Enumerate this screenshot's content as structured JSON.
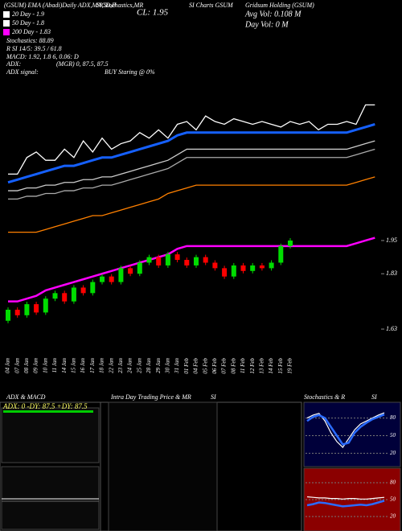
{
  "header": {
    "left": "(GSUM) EMA (Abadi)Daily ADX,MACD,B",
    "mid": "SI,Stochastics,MR",
    "close": "CL: 1.95",
    "name": "SI Charts GSUM",
    "company": "Gridsum Holding (GSUM)",
    "avg_vol": "Avg Vol: 0.108 M",
    "day_vol": "Day Vol: 0 M",
    "legend": [
      {
        "label": "20 Day - 1.9",
        "color": "#ffffff"
      },
      {
        "label": "50 Day - 1.8",
        "color": "#ffffff"
      },
      {
        "label": "200 Day - 1.83",
        "color": "#ff00ff"
      }
    ],
    "stats": [
      "Stochastics: 88.89",
      "R SI 14/5: 39.5 / 61.8",
      "MACD: 1.92, 1.8     6, 0.06: D"
    ],
    "adx": "ADX:",
    "adx_values": "(MGR) 0, 87.5, 87.5",
    "adx_signal": "ADX signal:",
    "signal": "BUY Staring @ 0%"
  },
  "chart_data": [
    {
      "type": "candlestick",
      "categories": [
        "04 Jan",
        "07 Jan",
        "08 Jan",
        "09 Jan",
        "10 Jan",
        "11 Jan",
        "14 Jan",
        "15 Jan",
        "16 Jan",
        "17 Jan",
        "18 Jan",
        "22 Jan",
        "23 Jan",
        "24 Jan",
        "25 Jan",
        "28 Jan",
        "29 Jan",
        "30 Jan",
        "31 Jan",
        "01 Feb",
        "04 Feb",
        "05 Feb",
        "06 Feb",
        "07 Feb",
        "08 Feb",
        "11 Feb",
        "12 Feb",
        "13 Feb",
        "14 Feb",
        "15 Feb",
        "19 Feb",
        null,
        null,
        null,
        null,
        null,
        null,
        null,
        null,
        null
      ],
      "open": [
        1.66,
        1.7,
        1.68,
        1.72,
        1.69,
        1.74,
        1.76,
        1.73,
        1.78,
        1.76,
        1.8,
        1.82,
        1.8,
        1.85,
        1.83,
        1.87,
        1.89,
        1.86,
        1.9,
        1.88,
        1.86,
        1.89,
        1.87,
        1.85,
        1.82,
        1.86,
        1.84,
        1.86,
        1.85,
        1.87,
        1.93,
        null,
        null,
        null,
        null,
        null,
        null,
        null,
        null,
        null
      ],
      "close": [
        1.7,
        1.68,
        1.72,
        1.69,
        1.74,
        1.76,
        1.73,
        1.78,
        1.76,
        1.8,
        1.82,
        1.8,
        1.85,
        1.83,
        1.87,
        1.89,
        1.86,
        1.9,
        1.88,
        1.86,
        1.89,
        1.87,
        1.85,
        1.82,
        1.86,
        1.84,
        1.86,
        1.85,
        1.87,
        1.93,
        1.95,
        null,
        null,
        null,
        null,
        null,
        null,
        null,
        null,
        null
      ],
      "up_color": "#00dd00",
      "down_color": "#ff0000",
      "series": [
        {
          "color": "#ffffff",
          "values": [
            2.19,
            2.19,
            2.25,
            2.27,
            2.24,
            2.24,
            2.28,
            2.25,
            2.31,
            2.27,
            2.32,
            2.28,
            2.3,
            2.31,
            2.34,
            2.32,
            2.35,
            2.32,
            2.37,
            2.38,
            2.35,
            2.4,
            2.38,
            2.37,
            2.39,
            2.38,
            2.37,
            2.38,
            2.37,
            2.36,
            2.38,
            2.37,
            2.38,
            2.35,
            2.37,
            2.37,
            2.38,
            2.37,
            2.44,
            2.44
          ]
        },
        {
          "color": "#1560ff",
          "values": [
            2.16,
            2.17,
            2.18,
            2.19,
            2.2,
            2.21,
            2.22,
            2.22,
            2.23,
            2.24,
            2.25,
            2.25,
            2.26,
            2.27,
            2.28,
            2.29,
            2.3,
            2.31,
            2.33,
            2.34,
            2.34,
            2.34,
            2.34,
            2.34,
            2.34,
            2.34,
            2.34,
            2.34,
            2.34,
            2.34,
            2.34,
            2.34,
            2.34,
            2.34,
            2.34,
            2.34,
            2.34,
            2.35,
            2.36,
            2.37
          ]
        },
        {
          "color": "#cccccc",
          "values": [
            2.13,
            2.13,
            2.14,
            2.14,
            2.15,
            2.15,
            2.16,
            2.16,
            2.17,
            2.17,
            2.18,
            2.18,
            2.19,
            2.2,
            2.21,
            2.22,
            2.23,
            2.24,
            2.26,
            2.28,
            2.28,
            2.28,
            2.28,
            2.28,
            2.28,
            2.28,
            2.28,
            2.28,
            2.28,
            2.28,
            2.28,
            2.28,
            2.28,
            2.28,
            2.28,
            2.28,
            2.28,
            2.29,
            2.3,
            2.31
          ]
        },
        {
          "color": "#aaaaaa",
          "values": [
            2.1,
            2.1,
            2.11,
            2.11,
            2.12,
            2.12,
            2.13,
            2.13,
            2.14,
            2.14,
            2.15,
            2.15,
            2.16,
            2.17,
            2.18,
            2.19,
            2.2,
            2.21,
            2.23,
            2.25,
            2.25,
            2.25,
            2.25,
            2.25,
            2.25,
            2.25,
            2.25,
            2.25,
            2.25,
            2.25,
            2.25,
            2.25,
            2.25,
            2.25,
            2.25,
            2.25,
            2.25,
            2.26,
            2.27,
            2.28
          ]
        },
        {
          "color": "#ff8000",
          "values": [
            1.98,
            1.98,
            1.98,
            1.98,
            1.99,
            2.0,
            2.01,
            2.02,
            2.03,
            2.04,
            2.04,
            2.05,
            2.06,
            2.07,
            2.08,
            2.09,
            2.1,
            2.12,
            2.13,
            2.14,
            2.15,
            2.15,
            2.15,
            2.15,
            2.15,
            2.15,
            2.15,
            2.15,
            2.15,
            2.15,
            2.15,
            2.15,
            2.15,
            2.15,
            2.15,
            2.15,
            2.15,
            2.16,
            2.17,
            2.18
          ]
        },
        {
          "color": "#ff00ff",
          "values": [
            1.73,
            1.73,
            1.74,
            1.75,
            1.77,
            1.78,
            1.79,
            1.8,
            1.81,
            1.82,
            1.83,
            1.84,
            1.85,
            1.86,
            1.87,
            1.88,
            1.89,
            1.9,
            1.92,
            1.93,
            1.93,
            1.93,
            1.93,
            1.93,
            1.93,
            1.93,
            1.93,
            1.93,
            1.93,
            1.93,
            1.93,
            1.93,
            1.93,
            1.93,
            1.93,
            1.93,
            1.93,
            1.94,
            1.95,
            1.96
          ]
        }
      ],
      "ylim": [
        1.54,
        2.79
      ],
      "yticks": [
        1.95,
        1.83,
        1.63
      ]
    },
    {
      "type": "adx",
      "title": "ADX  & MACD",
      "text": "ADX: 0  -DY: 87.5 +DY: 87.5"
    },
    {
      "type": "intraday",
      "title": "Intra  Day Trading Price  & MR",
      "title2": "SI"
    },
    {
      "type": "stochastics",
      "title": "Stochastics & R",
      "title2": "SI",
      "ylim": [
        0,
        100
      ],
      "yticks": [
        20,
        50,
        80
      ],
      "series": [
        {
          "color": "#ffffff",
          "values": [
            80,
            85,
            88,
            75,
            55,
            40,
            30,
            45,
            60,
            70,
            75,
            80,
            85,
            89
          ]
        },
        {
          "color": "#2a6bff",
          "values": [
            75,
            82,
            85,
            80,
            65,
            50,
            35,
            38,
            55,
            65,
            72,
            78,
            82,
            86
          ]
        }
      ],
      "rsi_series": [
        {
          "color": "#ffffff",
          "values": [
            55,
            54,
            53,
            53,
            52,
            52,
            51,
            52,
            52,
            51,
            51,
            52,
            53,
            54
          ]
        },
        {
          "color": "#2a6bff",
          "values": [
            40,
            42,
            45,
            44,
            42,
            40,
            38,
            39,
            40,
            41,
            40,
            42,
            45,
            48
          ]
        }
      ]
    }
  ]
}
